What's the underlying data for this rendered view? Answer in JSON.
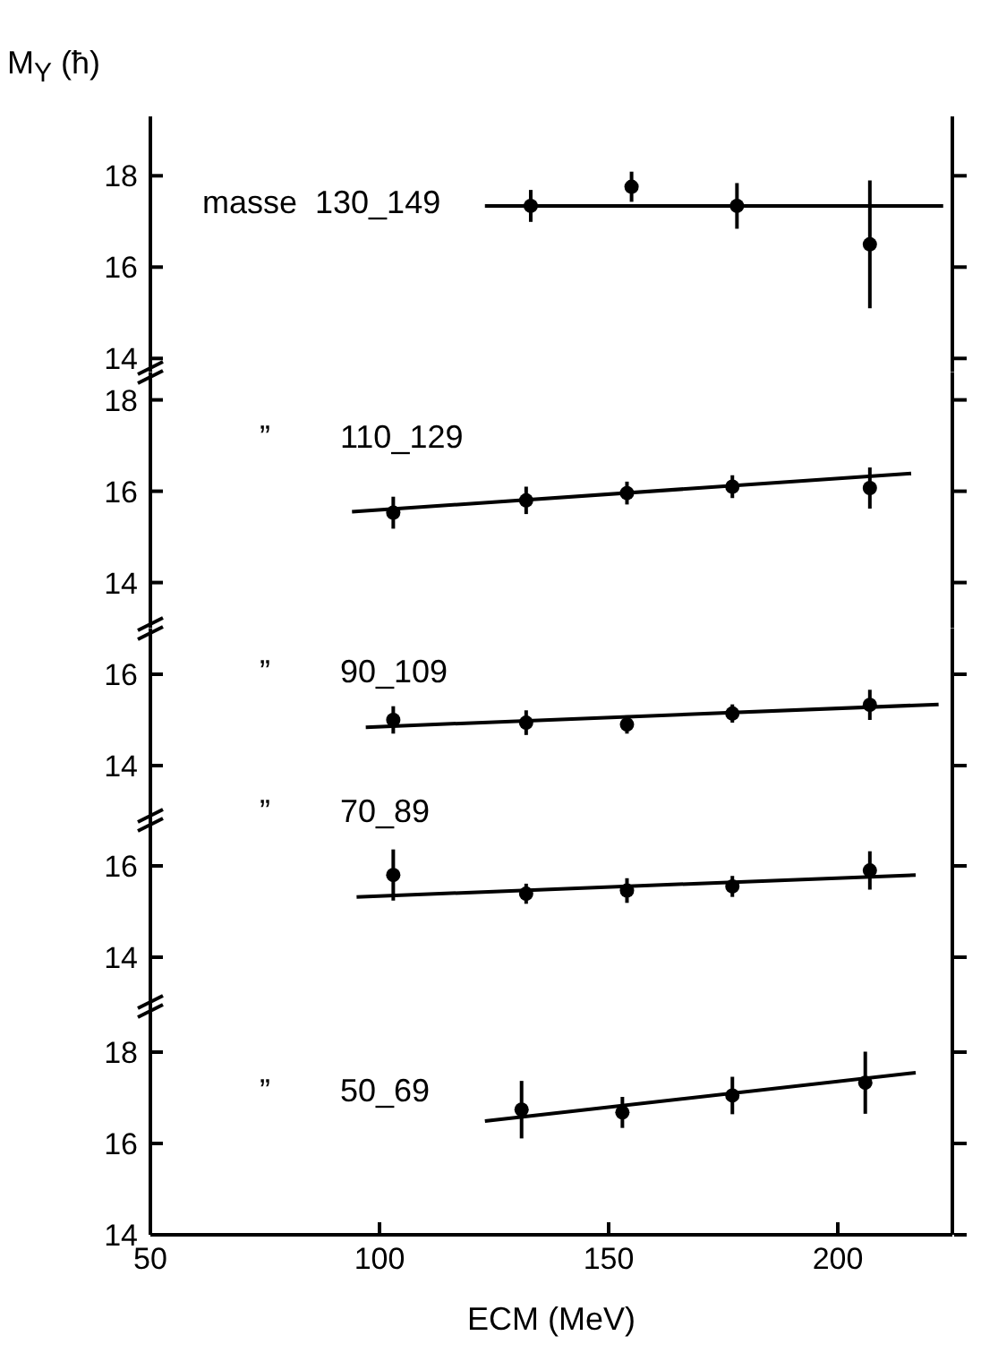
{
  "chart_data": [
    {
      "type": "scatter",
      "xlim": [
        50,
        225
      ],
      "xticks": [
        50,
        100,
        150,
        200
      ],
      "ylim": [
        13.7,
        19.3
      ],
      "yticks": [
        14,
        16,
        18
      ],
      "tick_labels": "y",
      "ylabel": "M$_{Y}$ (ħ)",
      "annotations": [
        "masse  130_149"
      ],
      "series": [
        {
          "marker": "circle",
          "color": "#000000",
          "x": [
            133,
            155,
            178,
            207
          ],
          "values": [
            17.34,
            17.76,
            17.34,
            16.5
          ],
          "errors": [
            0.35,
            0.33,
            0.5,
            1.4
          ]
        },
        {
          "type": "line",
          "color": "#000000",
          "x": [
            123,
            223
          ],
          "values": [
            17.34,
            17.34
          ]
        }
      ]
    },
    {
      "type": "scatter",
      "xlim": [
        50,
        225
      ],
      "xticks": [
        50,
        100,
        150,
        200
      ],
      "ylim": [
        13.0,
        18.6
      ],
      "yticks": [
        14,
        16,
        18
      ],
      "tick_labels": "y",
      "annotations": [
        "”",
        "110_129"
      ],
      "series": [
        {
          "marker": "circle",
          "color": "#000000",
          "x": [
            103,
            132,
            154,
            177,
            207
          ],
          "values": [
            15.53,
            15.8,
            15.96,
            16.1,
            16.07
          ],
          "errors": [
            0.35,
            0.3,
            0.25,
            0.25,
            0.45
          ]
        },
        {
          "type": "line",
          "color": "#000000",
          "x": [
            94,
            216
          ],
          "values": [
            15.55,
            16.39
          ]
        }
      ]
    },
    {
      "type": "scatter",
      "xlim": [
        50,
        225
      ],
      "xticks": [
        50,
        100,
        150,
        200
      ],
      "ylim": [
        12.8,
        17.0
      ],
      "yticks": [
        14,
        16
      ],
      "tick_labels": "y",
      "annotations": [
        "”",
        "90_109"
      ],
      "series": [
        {
          "marker": "circle",
          "color": "#000000",
          "x": [
            103,
            132,
            154,
            177,
            207
          ],
          "values": [
            15.0,
            14.94,
            14.9,
            15.14,
            15.33
          ],
          "errors": [
            0.3,
            0.27,
            0.2,
            0.2,
            0.33
          ]
        },
        {
          "type": "line",
          "color": "#000000",
          "x": [
            97,
            222
          ],
          "values": [
            14.84,
            15.34
          ]
        }
      ]
    },
    {
      "type": "scatter",
      "xlim": [
        50,
        225
      ],
      "xticks": [
        50,
        100,
        150,
        200
      ],
      "ylim": [
        12.9,
        17.0
      ],
      "yticks": [
        14,
        16
      ],
      "tick_labels": "y",
      "annotations": [
        "”",
        "70_89"
      ],
      "series": [
        {
          "marker": "circle",
          "color": "#000000",
          "x": [
            103,
            132,
            154,
            177,
            207
          ],
          "values": [
            15.8,
            15.39,
            15.46,
            15.55,
            15.9
          ],
          "errors": [
            0.56,
            0.22,
            0.27,
            0.23,
            0.42
          ]
        },
        {
          "type": "line",
          "color": "#000000",
          "x": [
            95,
            217
          ],
          "values": [
            15.32,
            15.8
          ]
        }
      ]
    },
    {
      "type": "scatter",
      "xlim": [
        50,
        225
      ],
      "xticks": [
        50,
        100,
        150,
        200
      ],
      "ylim": [
        14,
        19
      ],
      "yticks": [
        14,
        16,
        18
      ],
      "xlabel": "ECM (MeV)",
      "annotations": [
        "”",
        "50_69"
      ],
      "series": [
        {
          "marker": "circle",
          "color": "#000000",
          "x": [
            131,
            153,
            177,
            206
          ],
          "values": [
            16.74,
            16.68,
            17.05,
            17.33
          ],
          "errors": [
            0.63,
            0.34,
            0.41,
            0.68
          ]
        },
        {
          "type": "line",
          "color": "#000000",
          "x": [
            123,
            217
          ],
          "values": [
            16.49,
            17.55
          ]
        }
      ]
    }
  ]
}
